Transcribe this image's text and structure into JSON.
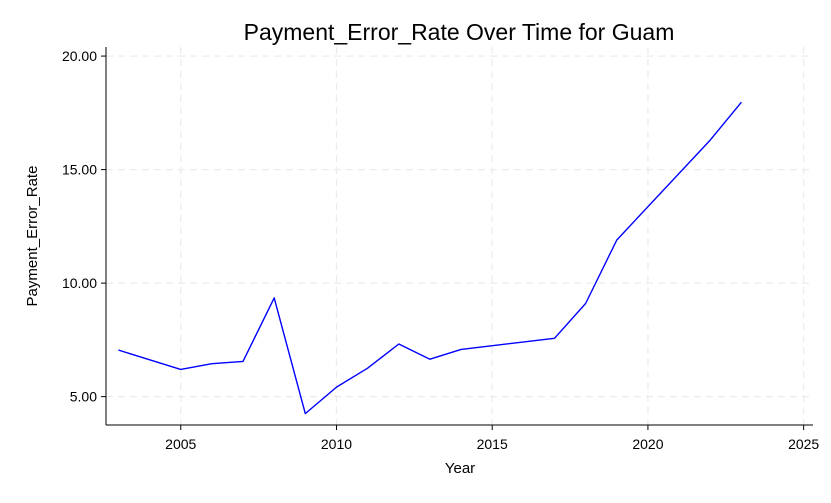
{
  "chart_data": {
    "type": "line",
    "title": "Payment_Error_Rate Over Time for Guam",
    "xlabel": "Year",
    "ylabel": "Payment_Error_Rate",
    "xlim": [
      2002.6,
      2025.3
    ],
    "ylim": [
      3.75,
      20.4
    ],
    "xticks": [
      2005,
      2010,
      2015,
      2020,
      2025
    ],
    "xtick_labels": [
      "2005",
      "2010",
      "2015",
      "2020",
      "2025"
    ],
    "yticks": [
      5,
      10,
      15,
      20
    ],
    "ytick_labels": [
      "5.00",
      "10.00",
      "15.00",
      "20.00"
    ],
    "grid": true,
    "series": [
      {
        "color": "#0000ff",
        "x": [
          2003,
          2005,
          2006,
          2007,
          2008,
          2009,
          2010,
          2011,
          2012,
          2013,
          2014,
          2017,
          2018,
          2019,
          2022,
          2023
        ],
        "y": [
          7.05,
          6.2,
          6.45,
          6.55,
          9.35,
          4.25,
          5.42,
          6.25,
          7.32,
          6.65,
          7.08,
          7.57,
          9.1,
          11.9,
          16.3,
          17.97
        ]
      }
    ]
  }
}
